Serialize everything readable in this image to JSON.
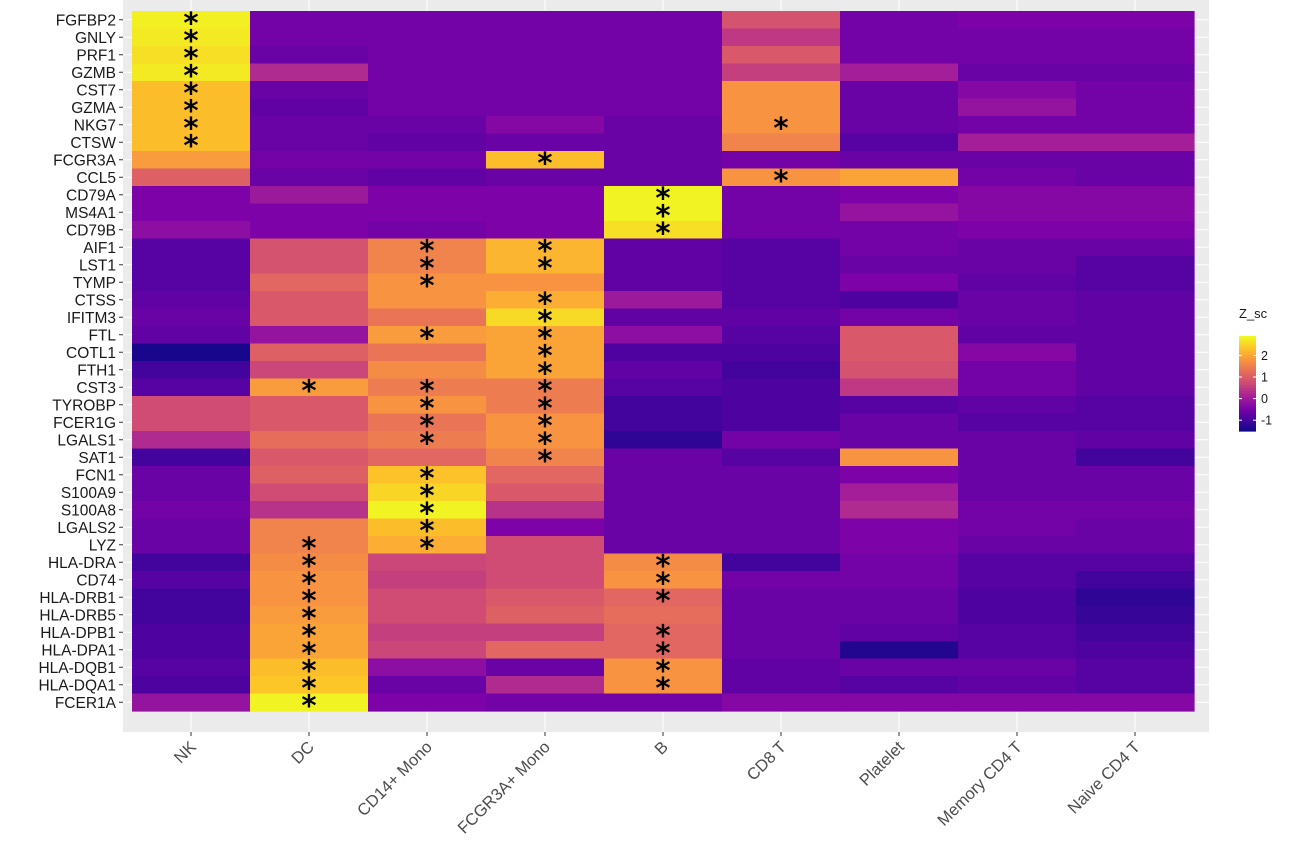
{
  "chart_data": {
    "type": "heatmap",
    "title": "",
    "xlabel": "",
    "ylabel": "",
    "legend_title": "Z_sc",
    "legend_ticks": [
      2,
      1,
      0,
      -1
    ],
    "color_scale": "plasma",
    "color_range": [
      -1.5,
      2.9
    ],
    "legend_placement": "right",
    "grid": true,
    "marker_symbol": "*",
    "columns": [
      "NK",
      "DC",
      "CD14+ Mono",
      "FCGR3A+ Mono",
      "B",
      "CD8 T",
      "Platelet",
      "Memory CD4 T",
      "Naive CD4 T"
    ],
    "rows": [
      "FGFBP2",
      "GNLY",
      "PRF1",
      "GZMB",
      "CST7",
      "GZMA",
      "NKG7",
      "CTSW",
      "FCGR3A",
      "CCL5",
      "CD79A",
      "MS4A1",
      "CD79B",
      "AIF1",
      "LST1",
      "TYMP",
      "CTSS",
      "IFITM3",
      "FTL",
      "COTL1",
      "FTH1",
      "CST3",
      "TYROBP",
      "FCER1G",
      "LGALS1",
      "SAT1",
      "FCN1",
      "S100A9",
      "S100A8",
      "LGALS2",
      "LYZ",
      "HLA-DRA",
      "CD74",
      "HLA-DRB1",
      "HLA-DRB5",
      "HLA-DPB1",
      "HLA-DPA1",
      "HLA-DQB1",
      "HLA-DQA1",
      "FCER1A"
    ],
    "values": [
      [
        2.8,
        -0.5,
        -0.5,
        -0.5,
        -0.5,
        0.9,
        -0.5,
        -0.4,
        -0.4
      ],
      [
        2.75,
        -0.5,
        -0.5,
        -0.5,
        -0.5,
        0.5,
        -0.5,
        -0.5,
        -0.5
      ],
      [
        2.65,
        -0.6,
        -0.5,
        -0.5,
        -0.5,
        1.0,
        -0.5,
        -0.5,
        -0.5
      ],
      [
        2.75,
        0.3,
        -0.5,
        -0.5,
        -0.5,
        0.6,
        0.1,
        -0.6,
        -0.6
      ],
      [
        2.3,
        -0.6,
        -0.5,
        -0.5,
        -0.5,
        1.8,
        -0.6,
        -0.3,
        -0.5
      ],
      [
        2.3,
        -0.7,
        -0.5,
        -0.5,
        -0.5,
        1.8,
        -0.6,
        -0.1,
        -0.5
      ],
      [
        2.3,
        -0.6,
        -0.6,
        -0.3,
        -0.6,
        1.8,
        -0.6,
        -0.5,
        -0.5
      ],
      [
        2.3,
        -0.6,
        -0.7,
        -0.6,
        -0.6,
        1.6,
        -0.8,
        0.1,
        0.1
      ],
      [
        1.9,
        -0.5,
        -0.5,
        2.3,
        -0.6,
        -0.5,
        -0.6,
        -0.6,
        -0.6
      ],
      [
        1.1,
        -0.6,
        -0.7,
        -0.6,
        -0.6,
        1.8,
        2.0,
        -0.5,
        -0.6
      ],
      [
        -0.4,
        0.0,
        -0.4,
        -0.4,
        2.85,
        -0.5,
        -0.4,
        -0.3,
        -0.3
      ],
      [
        -0.4,
        -0.4,
        -0.4,
        -0.4,
        2.85,
        -0.5,
        -0.1,
        -0.3,
        -0.3
      ],
      [
        -0.2,
        -0.4,
        -0.5,
        -0.4,
        2.65,
        -0.5,
        -0.5,
        -0.4,
        -0.4
      ],
      [
        -0.8,
        0.9,
        1.6,
        2.2,
        -0.7,
        -0.8,
        -0.5,
        -0.6,
        -0.6
      ],
      [
        -0.8,
        0.9,
        1.6,
        2.2,
        -0.7,
        -0.8,
        -0.6,
        -0.6,
        -0.8
      ],
      [
        -0.8,
        1.2,
        1.8,
        1.8,
        -0.7,
        -0.8,
        -0.4,
        -0.7,
        -0.8
      ],
      [
        -0.7,
        1.0,
        1.8,
        2.1,
        0.0,
        -0.8,
        -0.9,
        -0.6,
        -0.7
      ],
      [
        -0.6,
        1.0,
        1.4,
        2.6,
        -0.7,
        -0.7,
        -0.5,
        -0.6,
        -0.7
      ],
      [
        -0.7,
        -0.1,
        1.9,
        2.0,
        -0.2,
        -0.8,
        1.0,
        -0.7,
        -0.7
      ],
      [
        -1.4,
        1.1,
        1.4,
        2.0,
        -0.9,
        -0.9,
        1.0,
        -0.3,
        -0.7
      ],
      [
        -1.0,
        0.7,
        1.7,
        2.0,
        -0.7,
        -1.0,
        0.9,
        -0.5,
        -0.7
      ],
      [
        -0.8,
        1.9,
        1.5,
        1.5,
        -0.8,
        -0.9,
        0.5,
        -0.5,
        -0.7
      ],
      [
        0.8,
        1.0,
        1.8,
        1.5,
        -1.0,
        -0.9,
        -0.8,
        -0.7,
        -0.8
      ],
      [
        0.8,
        1.0,
        1.4,
        1.8,
        -1.0,
        -0.9,
        -0.6,
        -0.8,
        -0.8
      ],
      [
        0.3,
        1.3,
        1.5,
        1.8,
        -1.2,
        -0.5,
        -0.6,
        -0.6,
        -0.7
      ],
      [
        -1.0,
        1.0,
        1.2,
        1.6,
        -0.6,
        -0.8,
        1.8,
        -0.6,
        -1.0
      ],
      [
        -0.6,
        1.1,
        2.35,
        1.2,
        -0.6,
        -0.6,
        -0.4,
        -0.6,
        -0.6
      ],
      [
        -0.6,
        0.8,
        2.55,
        1.0,
        -0.6,
        -0.6,
        0.1,
        -0.6,
        -0.6
      ],
      [
        -0.5,
        0.4,
        2.85,
        0.4,
        -0.6,
        -0.6,
        0.3,
        -0.5,
        -0.5
      ],
      [
        -0.6,
        1.6,
        2.3,
        -0.4,
        -0.6,
        -0.6,
        -0.4,
        -0.5,
        -0.6
      ],
      [
        -0.6,
        1.6,
        2.1,
        0.8,
        -0.6,
        -0.6,
        -0.4,
        -0.6,
        -0.6
      ],
      [
        -1.0,
        1.7,
        0.7,
        0.8,
        1.7,
        -1.0,
        -0.5,
        -0.8,
        -0.8
      ],
      [
        -0.8,
        1.8,
        0.6,
        0.8,
        1.8,
        -0.5,
        -0.5,
        -0.8,
        -1.0
      ],
      [
        -1.0,
        1.8,
        0.8,
        1.0,
        1.2,
        -0.6,
        -0.6,
        -0.9,
        -1.2
      ],
      [
        -1.0,
        1.9,
        0.8,
        1.1,
        1.3,
        -0.6,
        -0.6,
        -0.9,
        -1.1
      ],
      [
        -0.9,
        2.0,
        0.6,
        0.6,
        1.2,
        -0.6,
        -0.7,
        -0.8,
        -1.0
      ],
      [
        -0.9,
        2.0,
        0.7,
        1.2,
        1.2,
        -0.6,
        -1.3,
        -0.8,
        -0.9
      ],
      [
        -0.8,
        2.3,
        -0.2,
        -0.6,
        1.8,
        -0.7,
        -0.6,
        -0.6,
        -0.8
      ],
      [
        -0.9,
        2.4,
        -0.6,
        0.3,
        1.8,
        -0.7,
        -0.8,
        -0.7,
        -0.8
      ],
      [
        -0.1,
        2.85,
        -0.4,
        -0.5,
        -0.5,
        -0.3,
        -0.3,
        -0.3,
        -0.3
      ]
    ],
    "markers": [
      [
        0,
        0
      ],
      [
        1,
        0
      ],
      [
        2,
        0
      ],
      [
        3,
        0
      ],
      [
        4,
        0
      ],
      [
        5,
        0
      ],
      [
        6,
        0
      ],
      [
        7,
        0
      ],
      [
        6,
        5
      ],
      [
        8,
        3
      ],
      [
        9,
        5
      ],
      [
        10,
        4
      ],
      [
        11,
        4
      ],
      [
        12,
        4
      ],
      [
        13,
        2
      ],
      [
        13,
        3
      ],
      [
        14,
        2
      ],
      [
        14,
        3
      ],
      [
        15,
        2
      ],
      [
        16,
        3
      ],
      [
        17,
        3
      ],
      [
        18,
        2
      ],
      [
        18,
        3
      ],
      [
        19,
        3
      ],
      [
        20,
        3
      ],
      [
        21,
        1
      ],
      [
        21,
        2
      ],
      [
        21,
        3
      ],
      [
        22,
        2
      ],
      [
        22,
        3
      ],
      [
        23,
        2
      ],
      [
        23,
        3
      ],
      [
        24,
        2
      ],
      [
        24,
        3
      ],
      [
        25,
        3
      ],
      [
        26,
        2
      ],
      [
        27,
        2
      ],
      [
        28,
        2
      ],
      [
        29,
        2
      ],
      [
        30,
        1
      ],
      [
        30,
        2
      ],
      [
        31,
        1
      ],
      [
        31,
        4
      ],
      [
        32,
        1
      ],
      [
        32,
        4
      ],
      [
        33,
        1
      ],
      [
        33,
        4
      ],
      [
        34,
        1
      ],
      [
        35,
        1
      ],
      [
        35,
        4
      ],
      [
        36,
        1
      ],
      [
        36,
        4
      ],
      [
        37,
        1
      ],
      [
        37,
        4
      ],
      [
        38,
        1
      ],
      [
        38,
        4
      ],
      [
        39,
        1
      ]
    ]
  }
}
